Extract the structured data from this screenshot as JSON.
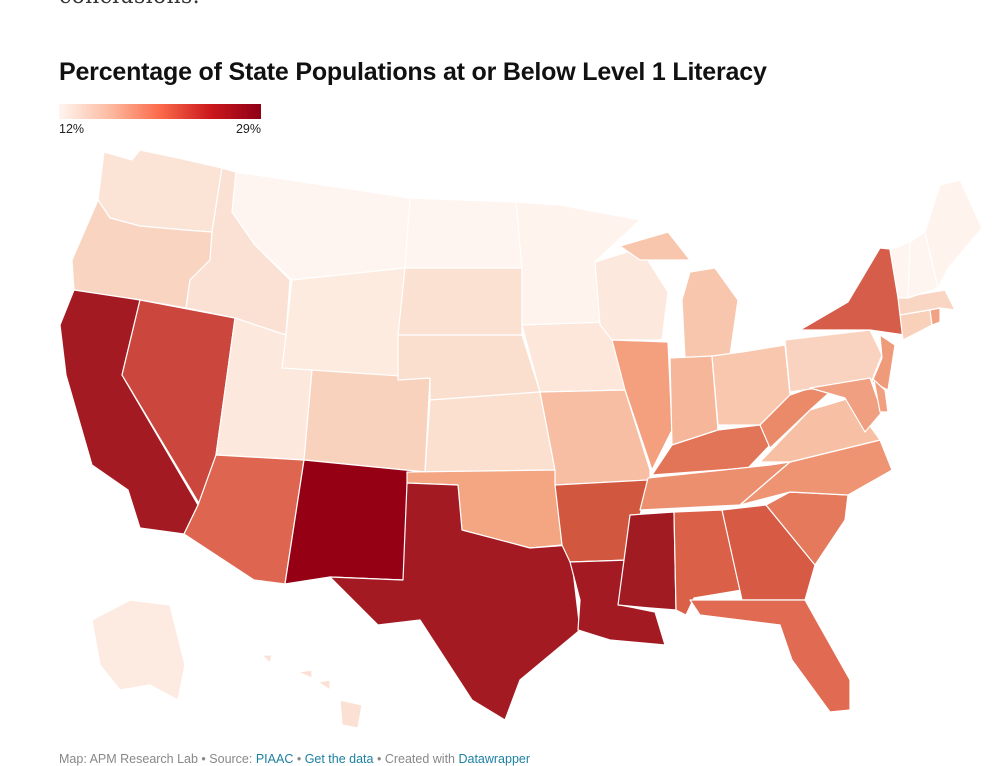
{
  "page": {
    "intro_fragment": "conclusions."
  },
  "map": {
    "title": "Percentage of State Populations at or Below Level 1 Literacy",
    "legend": {
      "min_label": "12%",
      "max_label": "29%",
      "min_color": "#fff5f0",
      "max_color": "#8f0016"
    }
  },
  "footer": {
    "prefix": "Map: APM Research Lab • Source: ",
    "source_link": "PIAAC",
    "sep1": " • ",
    "data_link": "Get the data",
    "sep2": " • Created with ",
    "tool_link": "Datawrapper"
  },
  "states": [
    {
      "name": "Washington",
      "level": "3",
      "color": "#fbe3d6"
    },
    {
      "name": "Oregon",
      "level": "4",
      "color": "#f9d4c0"
    },
    {
      "name": "California",
      "level": "9",
      "color": "#a41a22"
    },
    {
      "name": "Nevada",
      "level": "7",
      "color": "#cb463d"
    },
    {
      "name": "Idaho",
      "level": "3",
      "color": "#fbe1d3"
    },
    {
      "name": "Montana",
      "level": "1",
      "color": "#fff5f0"
    },
    {
      "name": "Wyoming",
      "level": "2",
      "color": "#fdebe0"
    },
    {
      "name": "Utah",
      "level": "2",
      "color": "#fde8dd"
    },
    {
      "name": "Arizona",
      "level": "6",
      "color": "#de6650"
    },
    {
      "name": "Colorado",
      "level": "4",
      "color": "#f9d2bd"
    },
    {
      "name": "New Mexico",
      "level": "10",
      "color": "#950014"
    },
    {
      "name": "North Dakota",
      "level": "1",
      "color": "#fff5f0"
    },
    {
      "name": "South Dakota",
      "level": "3",
      "color": "#fbe1d2"
    },
    {
      "name": "Nebraska",
      "level": "3",
      "color": "#fbdfce"
    },
    {
      "name": "Kansas",
      "level": "3",
      "color": "#fbe0d0"
    },
    {
      "name": "Oklahoma",
      "level": "5",
      "color": "#f4a582"
    },
    {
      "name": "Texas",
      "level": "9",
      "color": "#a41a22"
    },
    {
      "name": "Minnesota",
      "level": "1",
      "color": "#fff3ee"
    },
    {
      "name": "Iowa",
      "level": "2",
      "color": "#fde6da"
    },
    {
      "name": "Missouri",
      "level": "4",
      "color": "#f7bea3"
    },
    {
      "name": "Arkansas",
      "level": "7",
      "color": "#d2573f"
    },
    {
      "name": "Louisiana",
      "level": "9",
      "color": "#a41a22"
    },
    {
      "name": "Wisconsin",
      "level": "2",
      "color": "#fde8dd"
    },
    {
      "name": "Illinois",
      "level": "5",
      "color": "#f4a07e"
    },
    {
      "name": "Michigan",
      "level": "4",
      "color": "#f8c6ac"
    },
    {
      "name": "Indiana",
      "level": "4",
      "color": "#f6b699"
    },
    {
      "name": "Ohio",
      "level": "4",
      "color": "#f8c7ad"
    },
    {
      "name": "Kentucky",
      "level": "6",
      "color": "#e27558"
    },
    {
      "name": "Tennessee",
      "level": "5",
      "color": "#ec8f6f"
    },
    {
      "name": "Mississippi",
      "level": "9",
      "color": "#a11b22"
    },
    {
      "name": "Alabama",
      "level": "7",
      "color": "#da6048"
    },
    {
      "name": "Georgia",
      "level": "7",
      "color": "#d65a44"
    },
    {
      "name": "Florida",
      "level": "6",
      "color": "#e06b52"
    },
    {
      "name": "South Carolina",
      "level": "6",
      "color": "#e4795c"
    },
    {
      "name": "North Carolina",
      "level": "5",
      "color": "#ee9473"
    },
    {
      "name": "Virginia",
      "level": "4",
      "color": "#f7c0a4"
    },
    {
      "name": "West Virginia",
      "level": "5",
      "color": "#ea8a69"
    },
    {
      "name": "Pennsylvania",
      "level": "3",
      "color": "#f9d3bf"
    },
    {
      "name": "New York",
      "level": "7",
      "color": "#d65d4a"
    },
    {
      "name": "New Jersey",
      "level": "5",
      "color": "#ef9a79"
    },
    {
      "name": "Maryland",
      "level": "5",
      "color": "#f0a080"
    },
    {
      "name": "Delaware",
      "level": "5",
      "color": "#f0a080"
    },
    {
      "name": "Connecticut",
      "level": "4",
      "color": "#f9d0ba"
    },
    {
      "name": "Rhode Island",
      "level": "5",
      "color": "#f1a283"
    },
    {
      "name": "Massachusetts",
      "level": "3",
      "color": "#f9d6c3"
    },
    {
      "name": "Vermont",
      "level": "1",
      "color": "#fff5f0"
    },
    {
      "name": "New Hampshire",
      "level": "1",
      "color": "#fff5f0"
    },
    {
      "name": "Maine",
      "level": "1",
      "color": "#fff3ee"
    },
    {
      "name": "Alaska",
      "level": "2",
      "color": "#fdebe2"
    },
    {
      "name": "Hawaii",
      "level": "3",
      "color": "#fbe1d3"
    }
  ]
}
